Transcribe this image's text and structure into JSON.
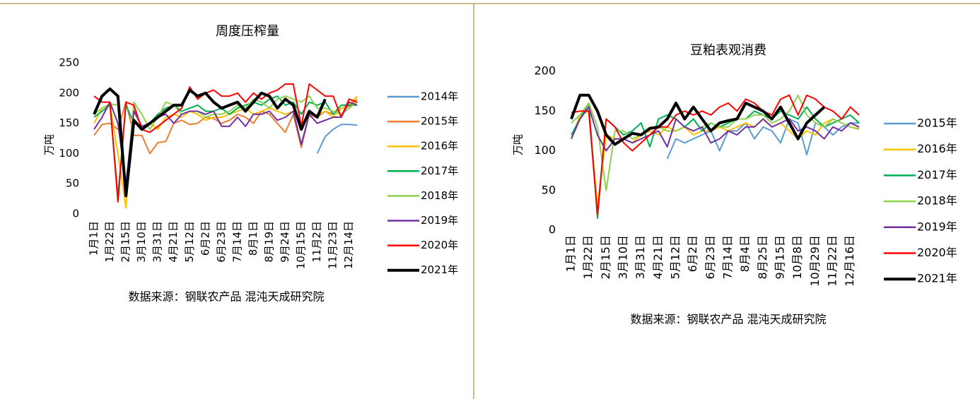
{
  "chart_data": [
    {
      "type": "line",
      "title": "周度压榨量",
      "y_label": "万吨",
      "source": "数据来源：钢联农产品 混沌天成研究院",
      "ylim": [
        0,
        250
      ],
      "yticks": [
        0,
        50,
        100,
        150,
        200,
        250
      ],
      "categories": [
        "1月1日",
        null,
        "1月22日",
        null,
        "2月15日",
        null,
        "3月10日",
        null,
        "3月31日",
        null,
        "4月21日",
        null,
        "5月12日",
        null,
        "6月2日",
        null,
        "6月23日",
        null,
        "7月14日",
        null,
        "8月1日",
        null,
        "8月19日",
        null,
        "9月24日",
        null,
        "10月15日",
        null,
        "11月2日",
        null,
        "11月23日",
        null,
        "12月14日",
        null
      ],
      "series": [
        {
          "name": "2014年",
          "color": "#5b9bd5",
          "values": [
            null,
            null,
            null,
            null,
            null,
            null,
            null,
            null,
            null,
            null,
            null,
            null,
            null,
            null,
            null,
            null,
            null,
            null,
            null,
            null,
            null,
            null,
            null,
            null,
            null,
            null,
            null,
            null,
            100,
            128,
            140,
            148,
            148,
            147
          ]
        },
        {
          "name": "2015年",
          "color": "#ed7d31",
          "values": [
            130,
            148,
            150,
            140,
            185,
            130,
            130,
            100,
            118,
            120,
            150,
            155,
            148,
            150,
            160,
            158,
            150,
            155,
            165,
            160,
            150,
            170,
            165,
            150,
            135,
            165,
            110,
            165,
            160,
            170,
            165,
            175,
            178,
            190
          ]
        },
        {
          "name": "2016年",
          "color": "#ffc000",
          "values": [
            150,
            175,
            180,
            100,
            10,
            175,
            140,
            150,
            140,
            160,
            165,
            160,
            170,
            165,
            155,
            160,
            160,
            165,
            170,
            175,
            165,
            170,
            175,
            170,
            165,
            170,
            150,
            160,
            165,
            170,
            160,
            175,
            180,
            195
          ]
        },
        {
          "name": "2017年",
          "color": "#00b050",
          "values": [
            160,
            170,
            180,
            30,
            180,
            150,
            145,
            150,
            165,
            175,
            180,
            170,
            175,
            180,
            170,
            170,
            175,
            165,
            175,
            180,
            185,
            180,
            190,
            195,
            180,
            185,
            165,
            185,
            180,
            185,
            165,
            180,
            180,
            180
          ]
        },
        {
          "name": "2018年",
          "color": "#92d050",
          "values": [
            165,
            175,
            182,
            180,
            40,
            185,
            165,
            140,
            160,
            185,
            180,
            165,
            170,
            170,
            160,
            165,
            165,
            170,
            180,
            175,
            190,
            185,
            175,
            190,
            195,
            190,
            185,
            195,
            175,
            175,
            170,
            165,
            175,
            185
          ]
        },
        {
          "name": "2019年",
          "color": "#7030a0",
          "values": [
            140,
            160,
            185,
            150,
            50,
            170,
            145,
            150,
            160,
            165,
            150,
            165,
            170,
            170,
            165,
            170,
            145,
            145,
            160,
            145,
            165,
            165,
            170,
            155,
            160,
            170,
            115,
            165,
            150,
            155,
            160,
            160,
            185,
            180
          ]
        },
        {
          "name": "2020年",
          "color": "#ff0000",
          "values": [
            195,
            185,
            185,
            20,
            185,
            180,
            140,
            135,
            145,
            155,
            165,
            175,
            210,
            190,
            200,
            205,
            195,
            195,
            200,
            185,
            200,
            190,
            200,
            205,
            215,
            215,
            145,
            215,
            205,
            195,
            195,
            160,
            190,
            185
          ]
        },
        {
          "name": "2021年",
          "color": "#000000",
          "values": [
            165,
            195,
            207,
            195,
            30,
            155,
            140,
            150,
            160,
            170,
            180,
            180,
            205,
            195,
            200,
            185,
            175,
            180,
            185,
            170,
            185,
            200,
            195,
            175,
            190,
            180,
            140,
            170,
            160,
            190,
            null,
            null,
            null,
            null
          ]
        }
      ]
    },
    {
      "type": "line",
      "title": "豆粕表观消费",
      "y_label": "万吨",
      "source": "数据来源：钢联农产品 混沌天成研究院",
      "ylim": [
        0,
        200
      ],
      "yticks": [
        0,
        50,
        100,
        150,
        200
      ],
      "categories": [
        "1月1日",
        null,
        "1月22日",
        null,
        "2月15日",
        null,
        "3月10日",
        null,
        "3月31日",
        null,
        "4月21日",
        null,
        "5月12日",
        null,
        "6月2日",
        null,
        "6月23日",
        null,
        "7月14日",
        null,
        "8月4日",
        null,
        "8月25日",
        null,
        "9月15日",
        null,
        "10月8日",
        null,
        "10月29日",
        null,
        "11月22日",
        null,
        "12月16日",
        null
      ],
      "series": [
        {
          "name": "2015年",
          "color": "#5b9bd5",
          "values": [
            null,
            null,
            null,
            null,
            null,
            null,
            null,
            null,
            null,
            null,
            null,
            90,
            115,
            110,
            115,
            120,
            125,
            100,
            125,
            125,
            135,
            115,
            130,
            125,
            110,
            140,
            135,
            95,
            135,
            130,
            120,
            130,
            135,
            135
          ]
        },
        {
          "name": "2016年",
          "color": "#ffc000",
          "values": [
            115,
            145,
            150,
            30,
            120,
            115,
            115,
            110,
            120,
            125,
            120,
            130,
            125,
            130,
            120,
            125,
            125,
            130,
            125,
            130,
            135,
            130,
            140,
            130,
            135,
            125,
            115,
            125,
            120,
            135,
            140,
            135,
            130,
            128
          ]
        },
        {
          "name": "2017年",
          "color": "#00b050",
          "values": [
            120,
            140,
            160,
            15,
            140,
            130,
            120,
            125,
            135,
            105,
            140,
            145,
            140,
            130,
            140,
            125,
            135,
            130,
            135,
            140,
            140,
            150,
            145,
            140,
            150,
            145,
            140,
            155,
            140,
            130,
            135,
            140,
            145,
            135
          ]
        },
        {
          "name": "2018年",
          "color": "#92d050",
          "values": [
            135,
            145,
            160,
            130,
            50,
            125,
            125,
            115,
            120,
            130,
            130,
            125,
            125,
            130,
            125,
            130,
            135,
            130,
            130,
            140,
            140,
            145,
            145,
            135,
            140,
            150,
            170,
            145,
            135,
            130,
            140,
            135,
            130,
            127
          ]
        },
        {
          "name": "2019年",
          "color": "#7030a0",
          "values": [
            115,
            140,
            155,
            120,
            100,
            115,
            115,
            110,
            115,
            120,
            125,
            105,
            140,
            130,
            125,
            130,
            110,
            115,
            125,
            120,
            130,
            130,
            140,
            130,
            135,
            140,
            125,
            130,
            125,
            115,
            130,
            125,
            135,
            130
          ]
        },
        {
          "name": "2020年",
          "color": "#ff0000",
          "values": [
            148,
            150,
            150,
            20,
            140,
            130,
            110,
            100,
            110,
            120,
            130,
            130,
            145,
            150,
            145,
            150,
            145,
            155,
            160,
            150,
            165,
            160,
            150,
            145,
            165,
            170,
            145,
            170,
            165,
            155,
            150,
            140,
            155,
            145
          ]
        },
        {
          "name": "2021年",
          "color": "#000000",
          "values": [
            140,
            170,
            170,
            150,
            120,
            108,
            115,
            122,
            120,
            128,
            130,
            140,
            160,
            140,
            155,
            140,
            125,
            135,
            138,
            140,
            160,
            155,
            150,
            140,
            155,
            135,
            115,
            135,
            145,
            155,
            null,
            null,
            null,
            null
          ]
        }
      ]
    }
  ]
}
